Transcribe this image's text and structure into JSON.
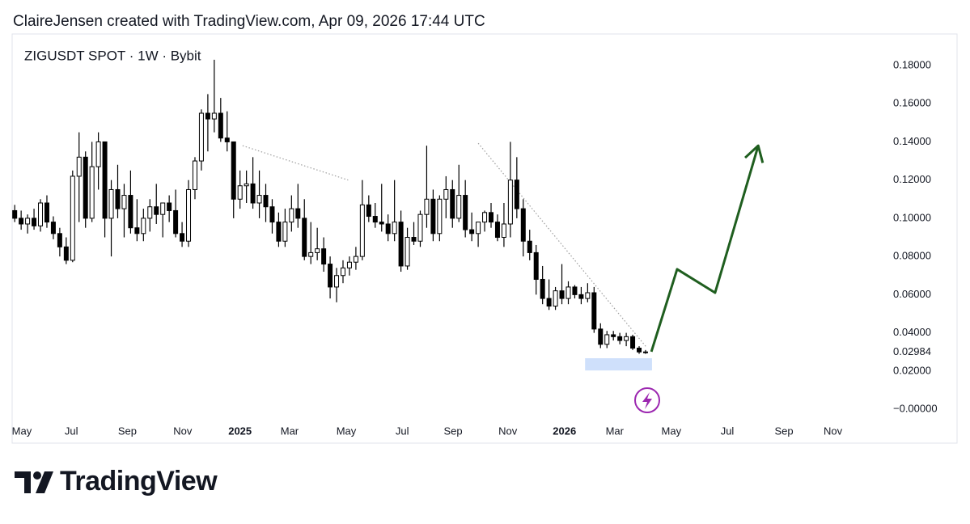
{
  "header": {
    "attribution": "ClaireJensen created with TradingView.com, Apr 09, 2026 17:44 UTC"
  },
  "footer": {
    "logo": "TradingView"
  },
  "chart_data": {
    "type": "candlestick",
    "title": "ZIGUSDT SPOT · 1W · Bybit",
    "up_color": "#ffffff",
    "down_color": "#000000",
    "border_color": "#000000",
    "xlim": [
      -0.4,
      134.7
    ],
    "ylim": [
      -0.0059,
      0.1965
    ],
    "xticks": [
      {
        "value": 1.1,
        "label": "May"
      },
      {
        "value": 8.8,
        "label": "Jul"
      },
      {
        "value": 17.5,
        "label": "Sep"
      },
      {
        "value": 26.1,
        "label": "Nov"
      },
      {
        "value": 35.0,
        "label": "2025"
      },
      {
        "value": 42.7,
        "label": "Mar"
      },
      {
        "value": 51.5,
        "label": "May"
      },
      {
        "value": 60.2,
        "label": "Jul"
      },
      {
        "value": 68.1,
        "label": "Sep"
      },
      {
        "value": 76.6,
        "label": "Nov"
      },
      {
        "value": 85.4,
        "label": "2026"
      },
      {
        "value": 93.2,
        "label": "Mar"
      },
      {
        "value": 102.0,
        "label": "May"
      },
      {
        "value": 110.7,
        "label": "Jul"
      },
      {
        "value": 119.5,
        "label": "Sep"
      },
      {
        "value": 127.1,
        "label": "Nov"
      }
    ],
    "bold_xticks": [
      "2025",
      "2026"
    ],
    "yticks": [
      {
        "value": 0.18,
        "label": "0.18000"
      },
      {
        "value": 0.16,
        "label": "0.16000"
      },
      {
        "value": 0.14,
        "label": "0.14000"
      },
      {
        "value": 0.12,
        "label": "0.12000"
      },
      {
        "value": 0.1,
        "label": "0.10000"
      },
      {
        "value": 0.08,
        "label": "0.08000"
      },
      {
        "value": 0.06,
        "label": "0.06000"
      },
      {
        "value": 0.04,
        "label": "0.04000"
      },
      {
        "value": 0.02,
        "label": "0.02000"
      },
      {
        "value": 0,
        "label": "−0.00000"
      }
    ],
    "last_price": {
      "value": 0.02984,
      "label": "0.02984"
    },
    "ohlc": [
      [
        0.104,
        0.107,
        0.098,
        0.1
      ],
      [
        0.1,
        0.104,
        0.094,
        0.097
      ],
      [
        0.097,
        0.102,
        0.092,
        0.1
      ],
      [
        0.1,
        0.105,
        0.094,
        0.096
      ],
      [
        0.096,
        0.11,
        0.093,
        0.108
      ],
      [
        0.108,
        0.112,
        0.095,
        0.098
      ],
      [
        0.098,
        0.101,
        0.089,
        0.092
      ],
      [
        0.092,
        0.095,
        0.08,
        0.085
      ],
      [
        0.085,
        0.09,
        0.076,
        0.078
      ],
      [
        0.078,
        0.125,
        0.077,
        0.122
      ],
      [
        0.122,
        0.145,
        0.098,
        0.132
      ],
      [
        0.132,
        0.135,
        0.095,
        0.1
      ],
      [
        0.1,
        0.14,
        0.098,
        0.127
      ],
      [
        0.127,
        0.145,
        0.115,
        0.14
      ],
      [
        0.14,
        0.14,
        0.09,
        0.1
      ],
      [
        0.1,
        0.12,
        0.08,
        0.115
      ],
      [
        0.115,
        0.128,
        0.1,
        0.105
      ],
      [
        0.105,
        0.118,
        0.09,
        0.112
      ],
      [
        0.112,
        0.125,
        0.092,
        0.095
      ],
      [
        0.095,
        0.11,
        0.088,
        0.092
      ],
      [
        0.092,
        0.105,
        0.088,
        0.1
      ],
      [
        0.1,
        0.11,
        0.093,
        0.106
      ],
      [
        0.106,
        0.118,
        0.097,
        0.102
      ],
      [
        0.102,
        0.108,
        0.09,
        0.108
      ],
      [
        0.108,
        0.112,
        0.098,
        0.104
      ],
      [
        0.104,
        0.115,
        0.09,
        0.092
      ],
      [
        0.092,
        0.098,
        0.085,
        0.088
      ],
      [
        0.088,
        0.12,
        0.085,
        0.115
      ],
      [
        0.115,
        0.132,
        0.11,
        0.13
      ],
      [
        0.13,
        0.157,
        0.125,
        0.155
      ],
      [
        0.155,
        0.165,
        0.135,
        0.152
      ],
      [
        0.152,
        0.183,
        0.145,
        0.155
      ],
      [
        0.155,
        0.163,
        0.14,
        0.142
      ],
      [
        0.142,
        0.156,
        0.135,
        0.14
      ],
      [
        0.14,
        0.14,
        0.1,
        0.11
      ],
      [
        0.11,
        0.125,
        0.105,
        0.117
      ],
      [
        0.117,
        0.125,
        0.108,
        0.118
      ],
      [
        0.118,
        0.132,
        0.105,
        0.108
      ],
      [
        0.108,
        0.125,
        0.1,
        0.112
      ],
      [
        0.112,
        0.118,
        0.098,
        0.106
      ],
      [
        0.106,
        0.11,
        0.092,
        0.098
      ],
      [
        0.098,
        0.103,
        0.085,
        0.088
      ],
      [
        0.088,
        0.105,
        0.085,
        0.098
      ],
      [
        0.098,
        0.112,
        0.093,
        0.105
      ],
      [
        0.105,
        0.118,
        0.095,
        0.1
      ],
      [
        0.1,
        0.11,
        0.078,
        0.08
      ],
      [
        0.08,
        0.098,
        0.076,
        0.082
      ],
      [
        0.082,
        0.095,
        0.078,
        0.084
      ],
      [
        0.084,
        0.09,
        0.072,
        0.076
      ],
      [
        0.076,
        0.08,
        0.058,
        0.064
      ],
      [
        0.064,
        0.074,
        0.056,
        0.07
      ],
      [
        0.07,
        0.078,
        0.066,
        0.074
      ],
      [
        0.074,
        0.08,
        0.07,
        0.077
      ],
      [
        0.077,
        0.085,
        0.073,
        0.08
      ],
      [
        0.08,
        0.12,
        0.078,
        0.107
      ],
      [
        0.107,
        0.112,
        0.098,
        0.101
      ],
      [
        0.101,
        0.108,
        0.095,
        0.098
      ],
      [
        0.098,
        0.118,
        0.093,
        0.097
      ],
      [
        0.097,
        0.102,
        0.088,
        0.092
      ],
      [
        0.092,
        0.12,
        0.088,
        0.098
      ],
      [
        0.098,
        0.104,
        0.072,
        0.075
      ],
      [
        0.075,
        0.095,
        0.073,
        0.09
      ],
      [
        0.09,
        0.098,
        0.086,
        0.088
      ],
      [
        0.088,
        0.104,
        0.085,
        0.102
      ],
      [
        0.102,
        0.138,
        0.095,
        0.11
      ],
      [
        0.11,
        0.115,
        0.088,
        0.092
      ],
      [
        0.092,
        0.112,
        0.088,
        0.11
      ],
      [
        0.11,
        0.122,
        0.1,
        0.115
      ],
      [
        0.115,
        0.12,
        0.095,
        0.1
      ],
      [
        0.1,
        0.128,
        0.098,
        0.112
      ],
      [
        0.112,
        0.12,
        0.09,
        0.094
      ],
      [
        0.094,
        0.103,
        0.088,
        0.092
      ],
      [
        0.092,
        0.097,
        0.085,
        0.098
      ],
      [
        0.098,
        0.104,
        0.093,
        0.103
      ],
      [
        0.103,
        0.108,
        0.095,
        0.098
      ],
      [
        0.098,
        0.102,
        0.088,
        0.09
      ],
      [
        0.09,
        0.108,
        0.085,
        0.097
      ],
      [
        0.097,
        0.14,
        0.09,
        0.12
      ],
      [
        0.12,
        0.132,
        0.1,
        0.105
      ],
      [
        0.105,
        0.11,
        0.08,
        0.088
      ],
      [
        0.088,
        0.094,
        0.078,
        0.082
      ],
      [
        0.082,
        0.086,
        0.06,
        0.068
      ],
      [
        0.068,
        0.075,
        0.055,
        0.058
      ],
      [
        0.058,
        0.068,
        0.052,
        0.054
      ],
      [
        0.054,
        0.064,
        0.052,
        0.062
      ],
      [
        0.062,
        0.076,
        0.055,
        0.058
      ],
      [
        0.058,
        0.067,
        0.055,
        0.064
      ],
      [
        0.064,
        0.065,
        0.058,
        0.06
      ],
      [
        0.06,
        0.064,
        0.055,
        0.058
      ],
      [
        0.058,
        0.066,
        0.056,
        0.061
      ],
      [
        0.061,
        0.064,
        0.04,
        0.042
      ],
      [
        0.042,
        0.045,
        0.032,
        0.034
      ],
      [
        0.034,
        0.041,
        0.032,
        0.039
      ],
      [
        0.039,
        0.041,
        0.036,
        0.038
      ],
      [
        0.038,
        0.04,
        0.034,
        0.036
      ],
      [
        0.036,
        0.04,
        0.033,
        0.038
      ],
      [
        0.038,
        0.039,
        0.031,
        0.032
      ],
      [
        0.032,
        0.033,
        0.029,
        0.03
      ],
      [
        0.03,
        0.031,
        0.029,
        0.02984
      ]
    ],
    "drawings": {
      "trendlines": [
        {
          "x": [
            35.4,
            51.8
          ],
          "y": [
            0.138,
            0.12
          ],
          "color": "#9e9e9e"
        },
        {
          "x": [
            72,
            98.2
          ],
          "y": [
            0.1393,
            0.0322
          ],
          "color": "#9e9e9e"
        }
      ],
      "zone": {
        "x": [
          88.6,
          99
        ],
        "y": [
          0.0203,
          0.0267
        ],
        "color": "#cfe0fb"
      },
      "arrow": {
        "x": [
          98.9,
          102.9,
          108.8,
          115.5
        ],
        "y": [
          0.0301,
          0.0733,
          0.061,
          0.138
        ],
        "color": "#1f5e1f"
      }
    }
  }
}
